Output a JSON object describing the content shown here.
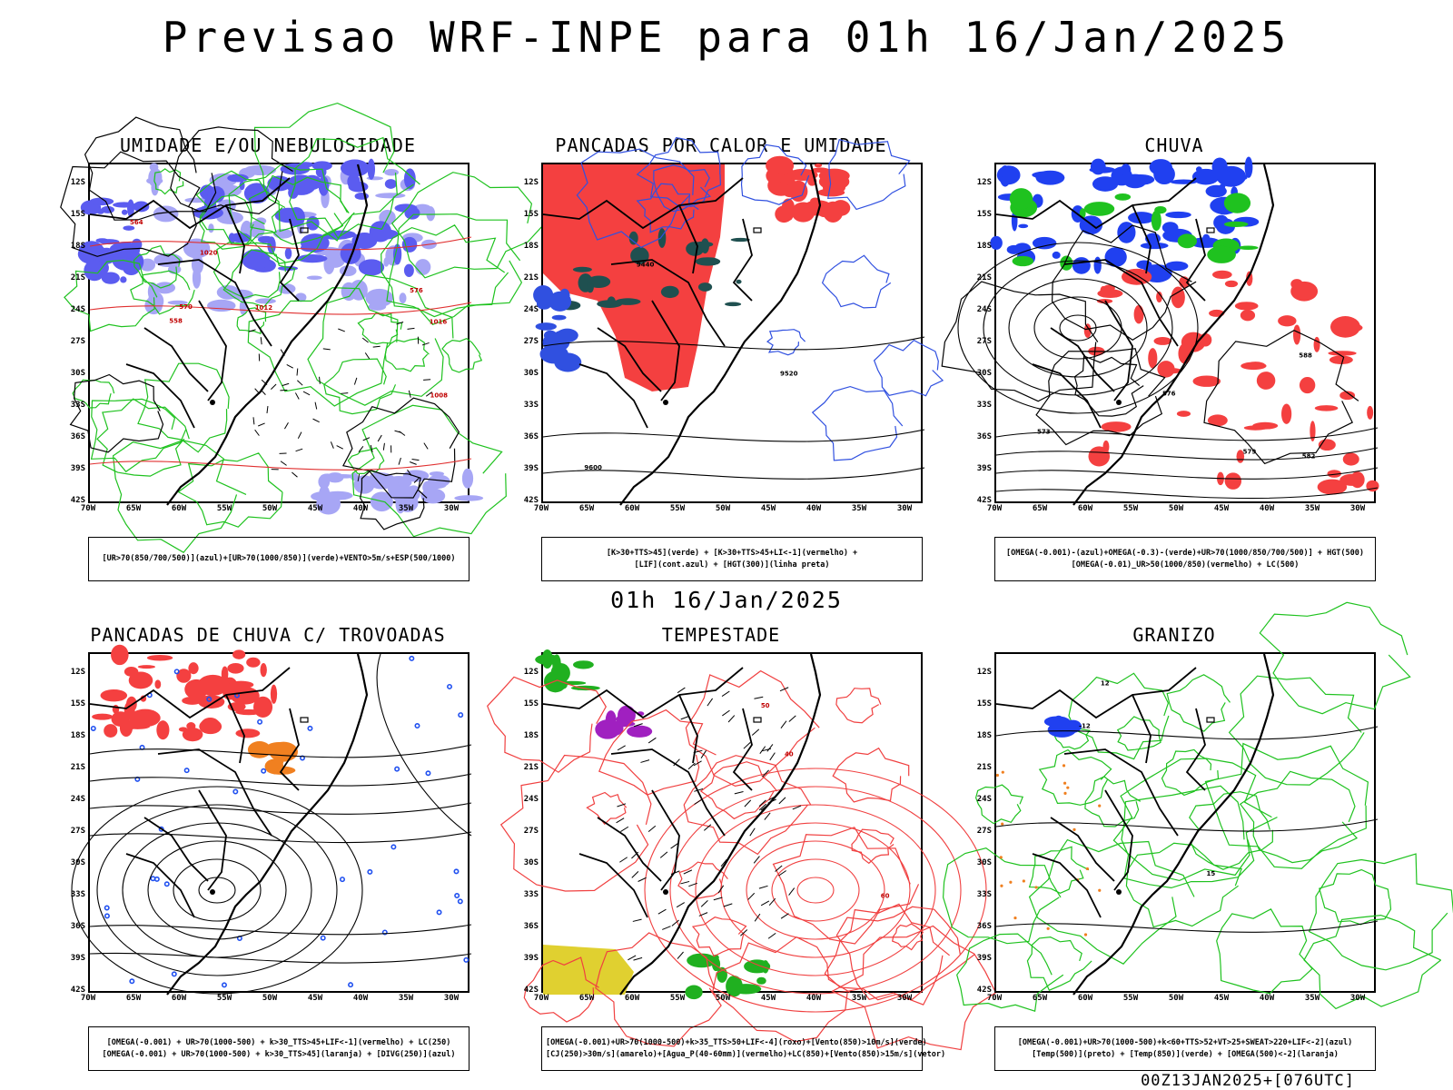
{
  "title": "Previsao WRF-INPE  para 01h 16/Jan/2025",
  "mid_label": "01h 16/Jan/2025",
  "footer": "00Z13JAN2025+[076UTC]",
  "lat_labels": [
    "12S",
    "15S",
    "18S",
    "21S",
    "24S",
    "27S",
    "30S",
    "33S",
    "36S",
    "39S",
    "42S"
  ],
  "lon_labels": [
    "70W",
    "65W",
    "60W",
    "55W",
    "50W",
    "45W",
    "40W",
    "35W",
    "30W"
  ],
  "panels": [
    {
      "id": "umidade",
      "title": "UMIDADE E/OU NEBULOSIDADE",
      "legend": [
        "[UR>70(850/700/500)](azul)+[UR>70(1000/850)](verde)+VENTO>5m/s+ESP(500/1000)"
      ],
      "contour_labels": [
        "1012",
        "1016",
        "1020",
        "1008",
        "576",
        "570",
        "564",
        "558"
      ],
      "colors": {
        "fill1": "#5b5cf0",
        "fill2": "#a7a6f5",
        "line1": "#1fc21f",
        "line2": "#e03030"
      }
    },
    {
      "id": "pancadas-calor",
      "title": "PANCADAS POR CALOR E UMIDADE",
      "legend": [
        "[K>30+TTS>45](verde) + [K>30+TTS>45+LI<-1](vermelho) +",
        "[LIF](cont.azul) + [HGT(300)](linha preta)"
      ],
      "contour_labels": [
        "9600",
        "9520",
        "9440"
      ],
      "colors": {
        "fill1": "#f44040",
        "fill2": "#1f5050",
        "line1": "#3050e0",
        "line2": "#000000"
      }
    },
    {
      "id": "chuva",
      "title": "CHUVA",
      "legend": [
        "[OMEGA(-0.001)-(azul)+OMEGA(-0.3)-(verde)+UR>70(1000/850/700/500)] + HGT(500)",
        "[OMEGA(-0.01)_UR>50(1000/850)(vermelho) + LC(500)"
      ],
      "contour_labels": [
        "582",
        "588",
        "579",
        "576",
        "573"
      ],
      "colors": {
        "fill1": "#2040f0",
        "fill2": "#f44040",
        "line1": "#000000",
        "line2": "#1fc21f"
      }
    },
    {
      "id": "trovoadas",
      "title": "PANCADAS DE CHUVA C/ TROVOADAS",
      "legend": [
        "[OMEGA(-0.001) + UR>70(1000-500) + k>30_TTS>45+LIF<-1](vermelho) + LC(250)",
        "[OMEGA(-0.001) + UR>70(1000-500) + k>30_TTS>45](laranja) + [DIVG(250)](azul)"
      ],
      "contour_labels": [],
      "colors": {
        "fill1": "#f44040",
        "fill2": "#2050f0",
        "line1": "#000000",
        "line2": "#f08020"
      }
    },
    {
      "id": "tempestade",
      "title": "TEMPESTADE",
      "legend": [
        "[OMEGA(-0.001)+UR>70(1000-500)+k>35_TTS>50+LIF<-4](roxo)+[Vento(850)>10m/s](verde)",
        "[CJ(250)>30m/s](amarelo)+[Agua_P(40-60mm)](vermelho)+LC(850)+[Vento(850)>15m/s](vetor)"
      ],
      "contour_labels": [
        "50",
        "40",
        "60"
      ],
      "colors": {
        "fill1": "#e0d030",
        "fill2": "#20b020",
        "line1": "#f04040",
        "line2": "#a020c0"
      }
    },
    {
      "id": "granizo",
      "title": "GRANIZO",
      "legend": [
        "[OMEGA(-0.001)+UR>70(1000-500)+k<60+TTS>52+VT>25+SWEAT>220+LIF<-2](azul)",
        "[Temp(500)](preto) + [Temp(850)](verde) + [OMEGA(500)<-2](laranja)"
      ],
      "contour_labels": [
        "15",
        "12",
        "-12"
      ],
      "colors": {
        "fill1": "#2040f0",
        "fill2": "#f08020",
        "line1": "#1fc21f",
        "line2": "#000000"
      }
    }
  ]
}
